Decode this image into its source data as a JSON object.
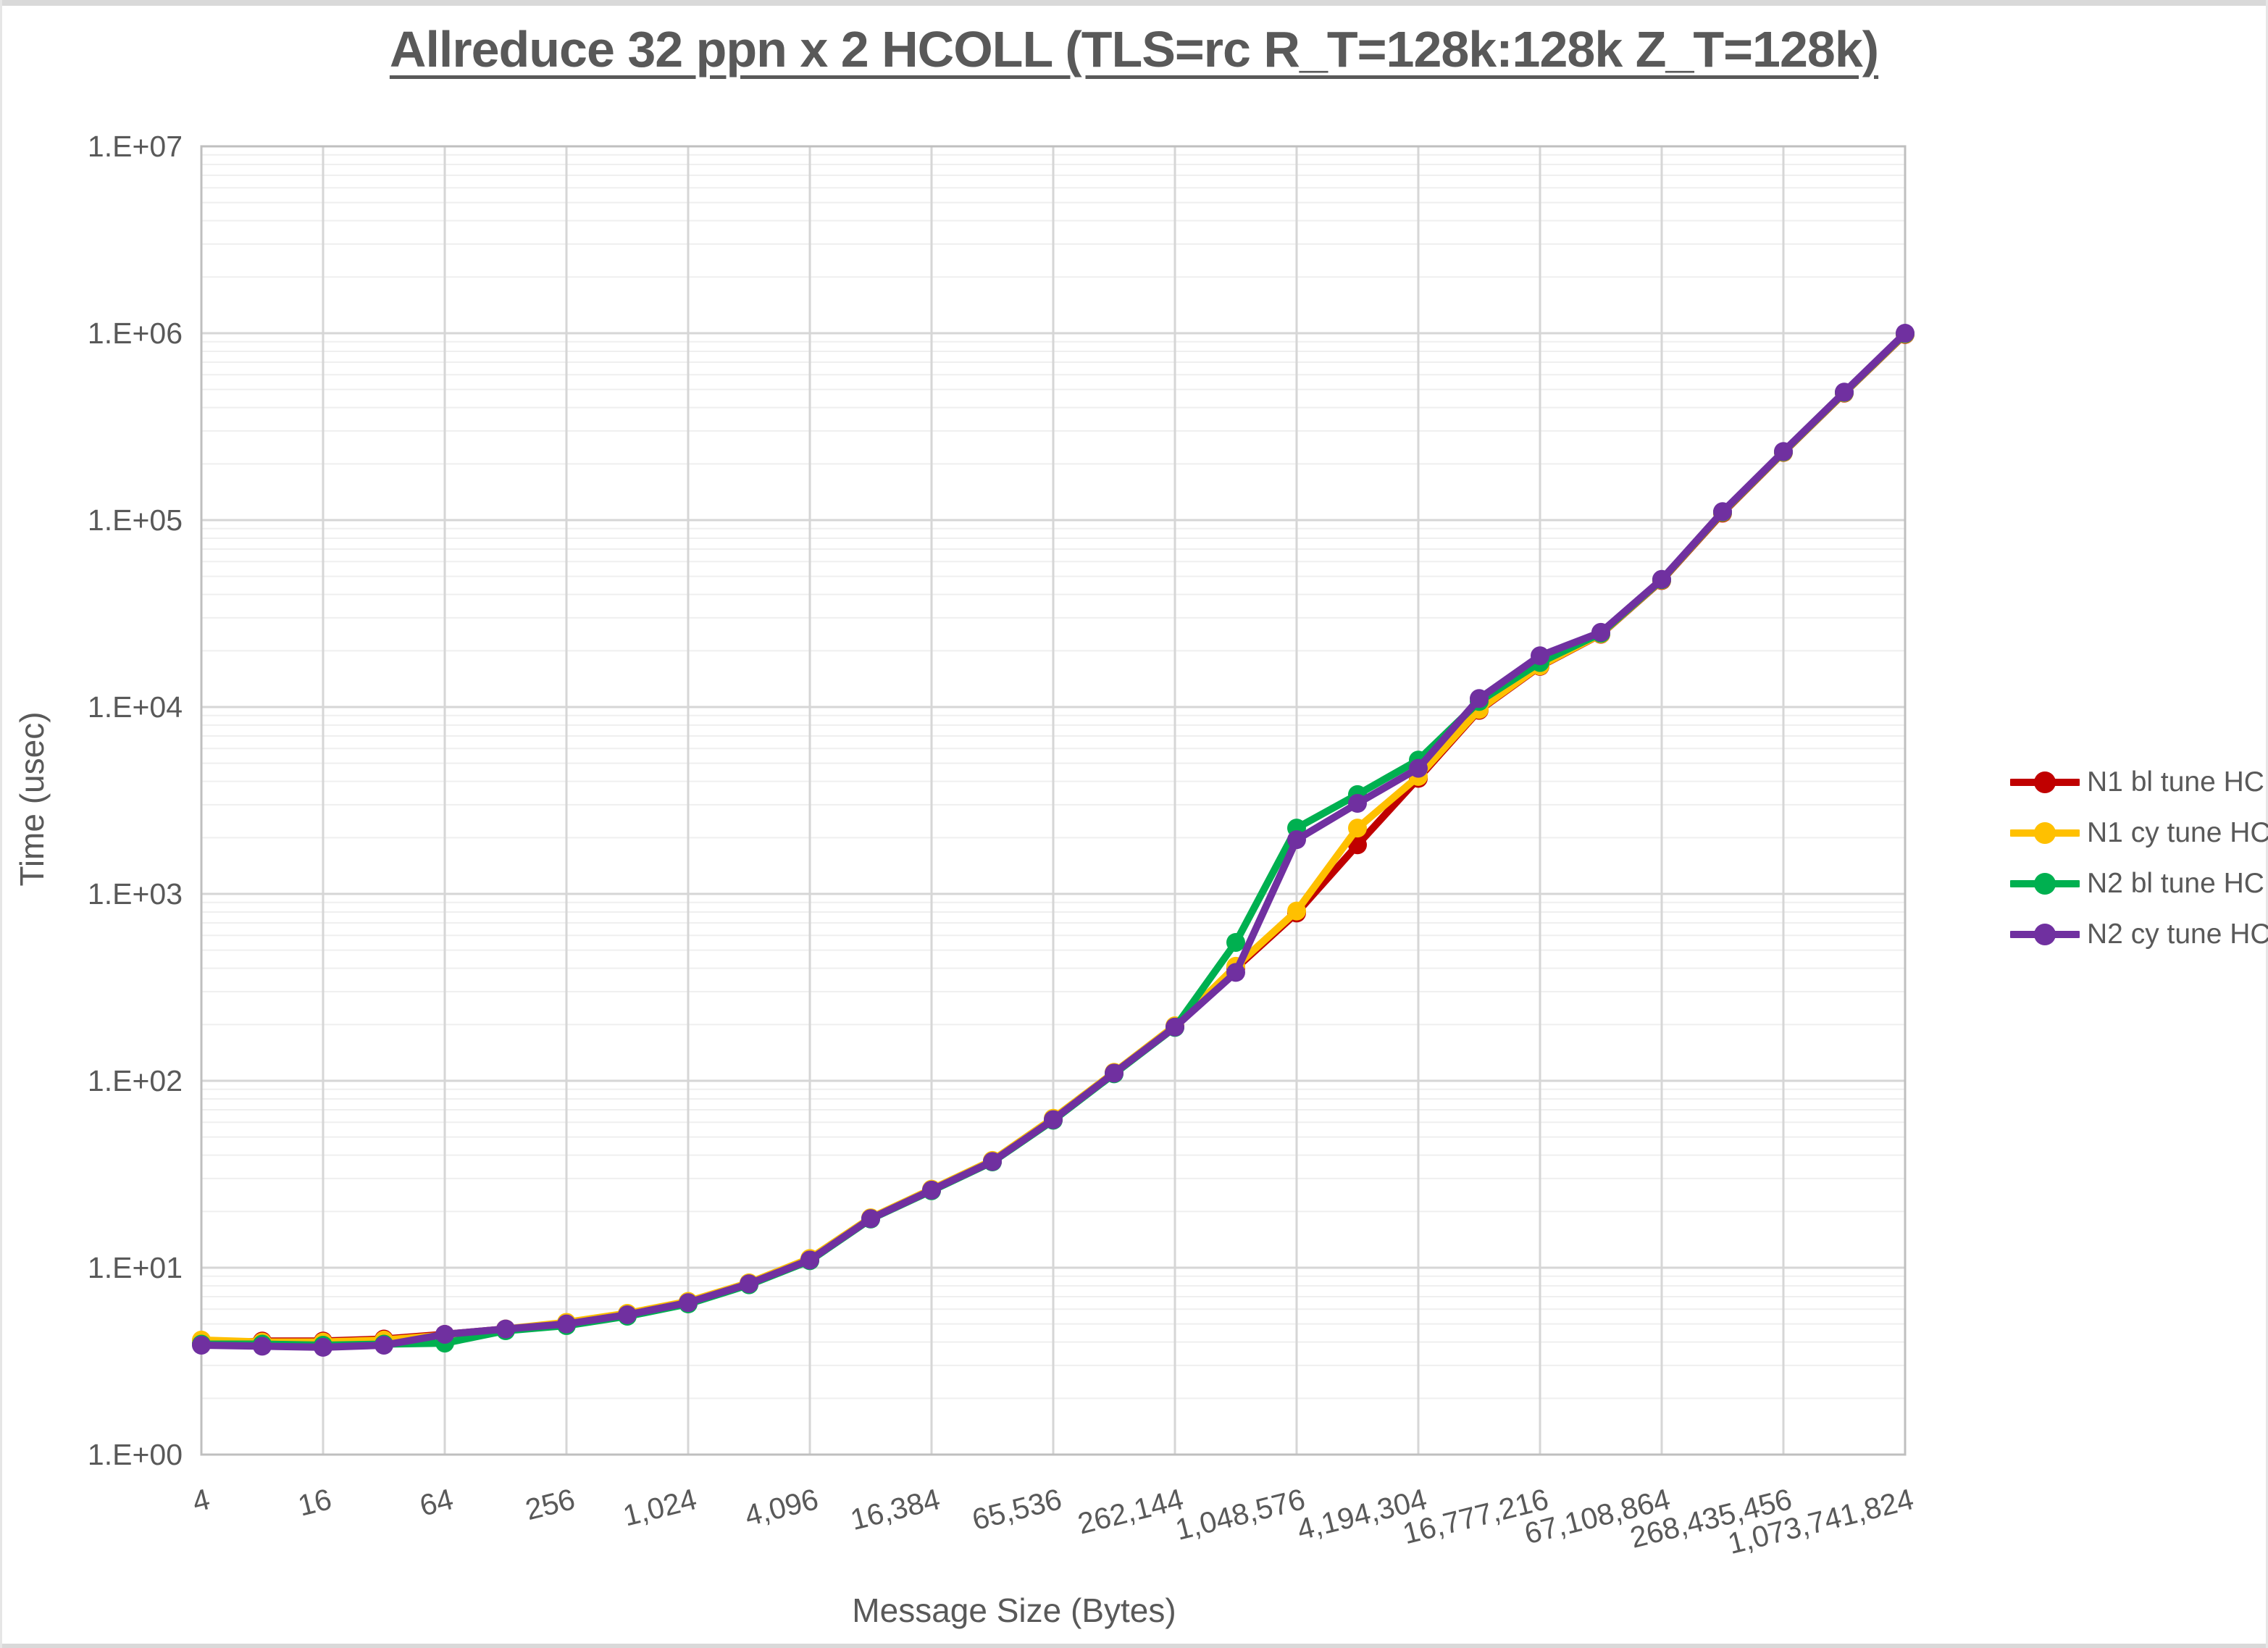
{
  "window": {
    "background": "#FFFFFF",
    "edge_strip_color": "#D9D9D9"
  },
  "title": {
    "text": "Allreduce 32 ppn x 2 HCOLL (TLS=rc R_T=128k:128k Z_T=128k)",
    "color": "#595959"
  },
  "axes": {
    "x_title": "Message Size (Bytes)",
    "y_title": "Time (usec)",
    "y_tick_labels": [
      "1.E+00",
      "1.E+01",
      "1.E+02",
      "1.E+03",
      "1.E+04",
      "1.E+05",
      "1.E+06",
      "1.E+07"
    ],
    "x_tick_labels": [
      "4",
      "16",
      "64",
      "256",
      "1,024",
      "4,096",
      "16,384",
      "65,536",
      "262,144",
      "1,048,576",
      "4,194,304",
      "16,777,216",
      "67,108,864",
      "268,435,456",
      "1,073,741,824"
    ],
    "text_color": "#595959",
    "gridline_major_color": "#D6D6D6",
    "gridline_minor_color": "#EFEFEF",
    "border_color": "#BFBFBF"
  },
  "legend": {
    "position": "right",
    "items": [
      {
        "label": "N1 bl tune HC",
        "color": "#C00000"
      },
      {
        "label": "N1 cy tune HC",
        "color": "#FFC000"
      },
      {
        "label": "N2 bl tune HC",
        "color": "#00B050"
      },
      {
        "label": "N2 cy tune HC",
        "color": "#7030A0"
      }
    ]
  },
  "chart_data": {
    "type": "line",
    "title": "Allreduce 32 ppn x 2 HCOLL (TLS=rc R_T=128k:128k Z_T=128k)",
    "xlabel": "Message Size (Bytes)",
    "ylabel": "Time (usec)",
    "x_scale": "log2",
    "y_scale": "log10",
    "xlim": [
      4,
      1073741824
    ],
    "ylim": [
      1,
      10000000
    ],
    "grid": true,
    "legend_position": "right",
    "x_major_ticks": [
      4,
      16,
      64,
      256,
      1024,
      4096,
      16384,
      65536,
      262144,
      1048576,
      4194304,
      16777216,
      67108864,
      268435456,
      1073741824
    ],
    "x": [
      4,
      8,
      16,
      32,
      64,
      128,
      256,
      512,
      1024,
      2048,
      4096,
      8192,
      16384,
      32768,
      65536,
      131072,
      262144,
      524288,
      1048576,
      2097152,
      4194304,
      8388608,
      16777216,
      33554432,
      67108864,
      134217728,
      268435456,
      536870912,
      1073741824
    ],
    "series": [
      {
        "name": "N1 bl tune HC",
        "color": "#C00000",
        "values": [
          3.9,
          4.05,
          4.05,
          4.15,
          4.4,
          4.7,
          5.0,
          5.6,
          6.5,
          8.2,
          11.0,
          18.3,
          26,
          37,
          62,
          110,
          195,
          400,
          790,
          1830,
          4150,
          9600,
          16500,
          24500,
          47500,
          109000,
          230000,
          478000,
          985000
        ]
      },
      {
        "name": "N1 cy tune HC",
        "color": "#FFC000",
        "values": [
          4.1,
          4.0,
          4.0,
          4.1,
          4.35,
          4.7,
          5.1,
          5.7,
          6.6,
          8.3,
          11.2,
          18.5,
          26.3,
          37.5,
          63,
          111,
          197,
          410,
          810,
          2250,
          4250,
          9700,
          16600,
          24600,
          47800,
          110000,
          231000,
          480000,
          990000
        ]
      },
      {
        "name": "N2 bl tune HC",
        "color": "#00B050",
        "values": [
          3.9,
          3.9,
          3.85,
          3.9,
          3.95,
          4.6,
          4.9,
          5.5,
          6.4,
          8.1,
          10.9,
          18.2,
          25.8,
          36.8,
          61.5,
          109,
          193,
          550,
          2250,
          3400,
          5200,
          10700,
          17300,
          24800,
          48000,
          110500,
          232000,
          482000,
          995000
        ]
      },
      {
        "name": "N2 cy tune HC",
        "color": "#7030A0",
        "values": [
          3.85,
          3.8,
          3.75,
          3.85,
          4.4,
          4.7,
          5.0,
          5.6,
          6.5,
          8.2,
          11.0,
          18.3,
          26,
          37,
          62,
          110,
          194,
          380,
          1950,
          3050,
          4700,
          11100,
          18800,
          25100,
          48200,
          111000,
          233000,
          484000,
          1000000
        ]
      }
    ]
  }
}
